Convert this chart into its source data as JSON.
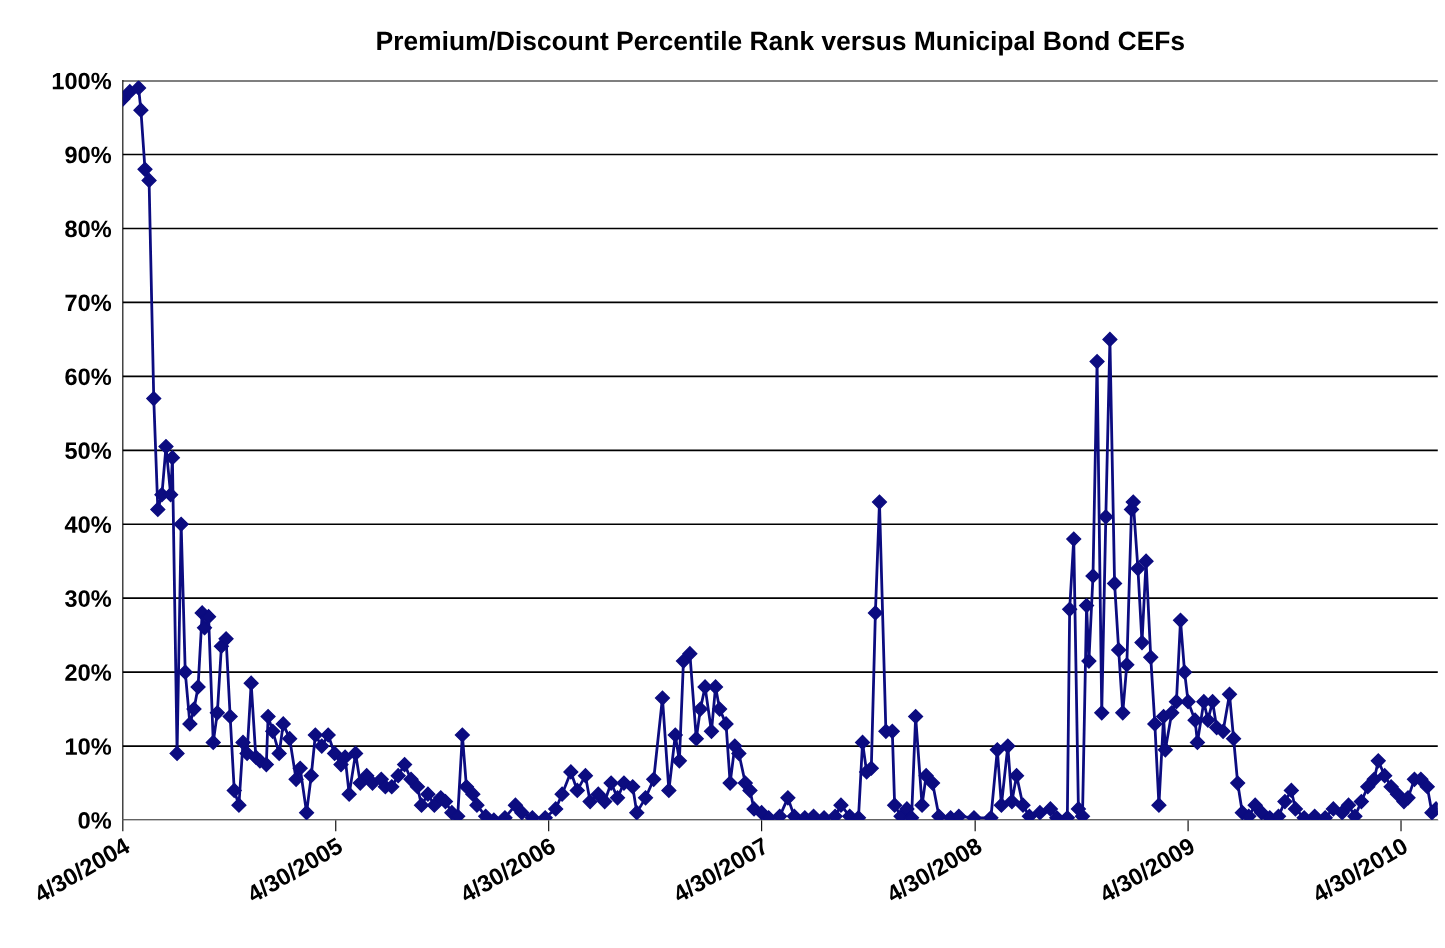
{
  "chart_data": {
    "type": "line",
    "title": "Premium/Discount Percentile Rank versus Municipal Bond CEFs",
    "x": [
      "2004-04-30",
      "2004-05-12",
      "2004-05-27",
      "2004-05-31",
      "2004-06-07",
      "2004-06-14",
      "2004-06-22",
      "2004-06-29",
      "2004-07-06",
      "2004-07-13",
      "2004-07-21",
      "2004-07-24",
      "2004-08-01",
      "2004-08-08",
      "2004-08-15",
      "2004-08-23",
      "2004-08-30",
      "2004-09-06",
      "2004-09-13",
      "2004-09-17",
      "2004-09-24",
      "2004-10-02",
      "2004-10-09",
      "2004-10-16",
      "2004-10-24",
      "2004-10-31",
      "2004-11-07",
      "2004-11-15",
      "2004-11-22",
      "2004-11-29",
      "2004-12-06",
      "2004-12-14",
      "2004-12-21",
      "2005-01-01",
      "2005-01-04",
      "2005-01-12",
      "2005-01-23",
      "2005-01-30",
      "2005-02-10",
      "2005-02-21",
      "2005-02-28",
      "2005-03-11",
      "2005-03-19",
      "2005-03-26",
      "2005-04-06",
      "2005-04-17",
      "2005-04-28",
      "2005-05-09",
      "2005-05-16",
      "2005-05-23",
      "2005-06-03",
      "2005-06-11",
      "2005-06-22",
      "2005-07-02",
      "2005-07-17",
      "2005-07-24",
      "2005-08-04",
      "2005-08-15",
      "2005-08-26",
      "2005-09-06",
      "2005-09-17",
      "2005-09-24",
      "2005-10-05",
      "2005-10-16",
      "2005-10-27",
      "2005-11-04",
      "2005-11-15",
      "2005-11-25",
      "2005-12-03",
      "2005-12-10",
      "2005-12-21",
      "2005-12-28",
      "2006-01-12",
      "2006-01-26",
      "2006-02-14",
      "2006-03-04",
      "2006-03-15",
      "2006-04-02",
      "2006-04-24",
      "2006-05-12",
      "2006-05-23",
      "2006-06-07",
      "2006-06-18",
      "2006-07-02",
      "2006-07-10",
      "2006-07-24",
      "2006-08-04",
      "2006-08-15",
      "2006-08-26",
      "2006-09-06",
      "2006-09-21",
      "2006-09-28",
      "2006-10-13",
      "2006-10-27",
      "2006-11-11",
      "2006-11-22",
      "2006-12-03",
      "2006-12-10",
      "2006-12-17",
      "2006-12-28",
      "2007-01-08",
      "2007-01-15",
      "2007-01-23",
      "2007-02-03",
      "2007-02-10",
      "2007-02-17",
      "2007-02-28",
      "2007-03-07",
      "2007-03-15",
      "2007-03-22",
      "2007-04-02",
      "2007-04-10",
      "2007-04-17",
      "2007-04-30",
      "2007-05-12",
      "2007-05-31",
      "2007-06-14",
      "2007-06-25",
      "2007-07-13",
      "2007-07-28",
      "2007-08-15",
      "2007-09-03",
      "2007-09-13",
      "2007-09-28",
      "2007-10-13",
      "2007-10-20",
      "2007-10-27",
      "2007-11-04",
      "2007-11-11",
      "2007-11-18",
      "2007-11-29",
      "2007-12-10",
      "2007-12-14",
      "2007-12-25",
      "2008-01-04",
      "2008-01-12",
      "2008-01-19",
      "2008-01-30",
      "2008-02-06",
      "2008-02-17",
      "2008-02-28",
      "2008-03-19",
      "2008-04-02",
      "2008-04-28",
      "2008-05-27",
      "2008-06-07",
      "2008-06-14",
      "2008-06-25",
      "2008-07-02",
      "2008-07-10",
      "2008-07-21",
      "2008-08-01",
      "2008-08-19",
      "2008-09-06",
      "2008-09-17",
      "2008-10-05",
      "2008-10-09",
      "2008-10-16",
      "2008-10-24",
      "2008-10-31",
      "2008-11-07",
      "2008-11-11",
      "2008-11-18",
      "2008-11-25",
      "2008-12-03",
      "2008-12-10",
      "2008-12-17",
      "2008-12-25",
      "2009-01-01",
      "2009-01-08",
      "2009-01-15",
      "2009-01-23",
      "2009-01-26",
      "2009-02-03",
      "2009-02-10",
      "2009-02-17",
      "2009-02-25",
      "2009-03-04",
      "2009-03-11",
      "2009-03-19",
      "2009-03-22",
      "2009-04-02",
      "2009-04-10",
      "2009-04-17",
      "2009-04-24",
      "2009-04-30",
      "2009-05-12",
      "2009-05-16",
      "2009-05-27",
      "2009-06-03",
      "2009-06-11",
      "2009-06-18",
      "2009-06-29",
      "2009-07-10",
      "2009-07-17",
      "2009-07-24",
      "2009-08-01",
      "2009-08-12",
      "2009-08-23",
      "2009-09-03",
      "2009-09-17",
      "2009-10-02",
      "2009-10-13",
      "2009-10-24",
      "2009-10-31",
      "2009-11-15",
      "2009-12-03",
      "2009-12-21",
      "2010-01-04",
      "2010-01-19",
      "2010-01-30",
      "2010-02-10",
      "2010-02-21",
      "2010-03-04",
      "2010-03-15",
      "2010-03-22",
      "2010-04-02",
      "2010-04-13",
      "2010-04-24",
      "2010-05-05",
      "2010-05-12",
      "2010-05-23",
      "2010-06-03",
      "2010-06-14",
      "2010-06-22",
      "2010-06-29"
    ],
    "series": [
      {
        "color": "#0c0c80",
        "values": [
          97.5,
          98.5,
          99,
          96,
          88,
          86.5,
          57,
          42,
          44,
          50.5,
          44,
          49,
          9,
          40,
          20,
          13,
          15,
          18,
          28,
          26,
          27.5,
          10.5,
          14.5,
          23.5,
          24.5,
          14,
          4,
          2,
          10.5,
          9,
          18.5,
          8.5,
          8,
          7.5,
          14,
          12,
          9,
          13,
          11,
          5.5,
          7,
          1,
          6,
          11.5,
          10,
          11.5,
          9,
          7.5,
          8.5,
          3.5,
          9,
          5,
          6,
          5,
          5.5,
          4.5,
          4.5,
          6,
          7.5,
          5.5,
          4.5,
          2,
          3.5,
          2,
          3,
          2.5,
          1,
          0.5,
          11.5,
          4.5,
          3.5,
          2,
          0.5,
          0,
          0.3,
          2,
          1,
          0.3,
          0.3,
          1.5,
          3.5,
          6.5,
          4,
          6,
          2.5,
          3.5,
          2.5,
          5,
          3,
          5,
          4.5,
          1,
          3,
          5.5,
          16.5,
          4,
          11.5,
          8,
          21.5,
          22.5,
          11,
          15,
          18,
          12,
          18,
          15,
          13,
          5,
          10,
          9,
          5,
          4,
          1.5,
          1,
          0.3,
          0.5,
          3,
          0.5,
          0.3,
          0.5,
          0.3,
          0.5,
          2,
          0.5,
          0.3,
          10.5,
          6.5,
          7,
          28,
          43,
          12,
          12,
          2,
          0.5,
          1.5,
          0.3,
          14,
          2,
          6,
          5,
          0.5,
          0.3,
          0.5,
          0.3,
          0.3,
          9.5,
          2,
          10,
          2.5,
          6,
          2,
          0.5,
          1,
          1.5,
          0.3,
          0.3,
          28.5,
          38,
          1.5,
          0.5,
          29,
          21.5,
          33,
          62,
          14.5,
          41,
          65,
          32,
          23,
          14.5,
          21,
          42,
          43,
          34,
          24,
          35,
          22,
          13,
          2,
          14,
          9.5,
          14.5,
          16,
          27,
          20,
          16,
          13.5,
          10.5,
          16,
          13.5,
          16,
          12.5,
          12,
          17,
          11,
          5,
          1,
          0.5,
          2,
          1,
          0.3,
          0.5,
          2.5,
          4,
          1.5,
          0.3,
          0.5,
          0.3,
          1.5,
          1,
          2,
          0.5,
          2.5,
          4.5,
          5.5,
          8,
          6,
          4.5,
          3.5,
          2.5,
          3,
          5.5,
          5.5,
          4.5,
          1,
          1.5
        ]
      }
    ],
    "xlim": [
      "2004-04-30",
      "2010-07-02"
    ],
    "xticks": [
      {
        "value": "2004-04-30",
        "label": "4/30/2004"
      },
      {
        "value": "2005-04-30",
        "label": "4/30/2005"
      },
      {
        "value": "2006-04-30",
        "label": "4/30/2006"
      },
      {
        "value": "2007-04-30",
        "label": "4/30/2007"
      },
      {
        "value": "2008-04-30",
        "label": "4/30/2008"
      },
      {
        "value": "2009-04-30",
        "label": "4/30/2009"
      },
      {
        "value": "2010-04-30",
        "label": "4/30/2010"
      }
    ],
    "ylim": [
      0,
      100
    ],
    "yticks": [
      {
        "value": 0,
        "label": "0%"
      },
      {
        "value": 10,
        "label": "10%"
      },
      {
        "value": 20,
        "label": "20%"
      },
      {
        "value": 30,
        "label": "30%"
      },
      {
        "value": 40,
        "label": "40%"
      },
      {
        "value": 50,
        "label": "50%"
      },
      {
        "value": 60,
        "label": "60%"
      },
      {
        "value": 70,
        "label": "70%"
      },
      {
        "value": 80,
        "label": "80%"
      },
      {
        "value": 90,
        "label": "90%"
      },
      {
        "value": 100,
        "label": "100%"
      }
    ],
    "grid": "y",
    "marker": "diamond",
    "line_style": "solid",
    "legend": false
  }
}
